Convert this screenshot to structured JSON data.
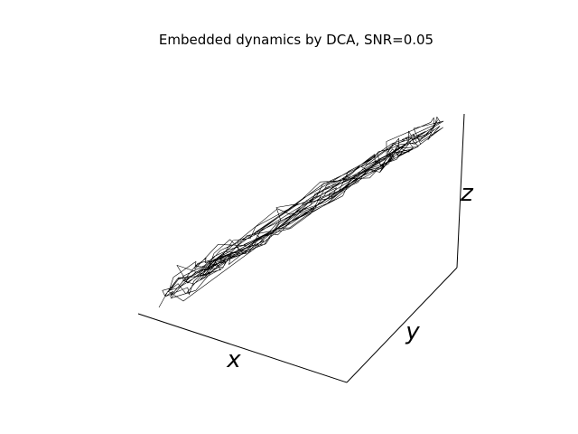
{
  "chart_data": {
    "type": "line",
    "projection": "3d",
    "title": "Embedded dynamics by DCA, SNR=0.05",
    "xlabel": "x",
    "ylabel": "y",
    "zlabel": "z",
    "grid": false,
    "tick_labels": false,
    "series": [
      {
        "color": "#000000",
        "description_points": 300
      }
    ]
  }
}
